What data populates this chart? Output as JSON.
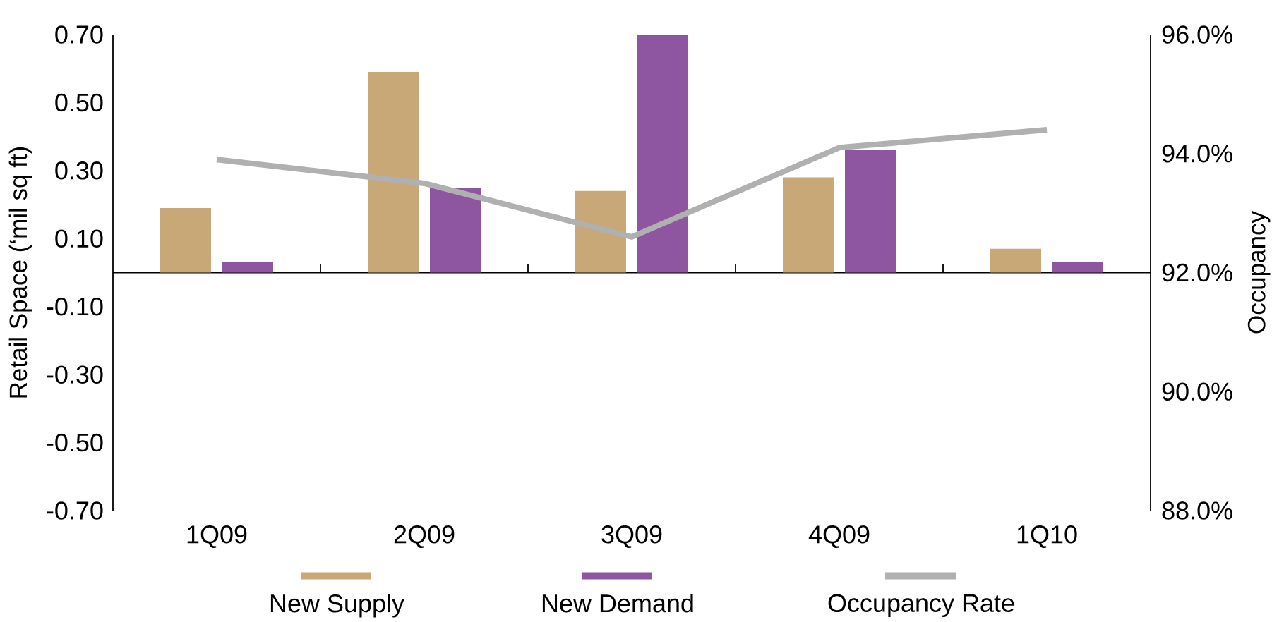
{
  "chart_data": {
    "type": "bar",
    "categories": [
      "1Q09",
      "2Q09",
      "3Q09",
      "4Q09",
      "1Q10"
    ],
    "series": [
      {
        "name": "New Supply",
        "color": "#c8a876",
        "values": [
          0.19,
          0.59,
          0.24,
          0.28,
          0.07
        ]
      },
      {
        "name": "New Demand",
        "color": "#8e55a0",
        "values": [
          0.03,
          0.25,
          0.7,
          0.36,
          0.03
        ]
      },
      {
        "name": "Occupancy Rate",
        "type": "line",
        "axis": "y2",
        "color": "#b0b0b0",
        "values": [
          93.9,
          93.5,
          92.6,
          94.1,
          94.4
        ]
      }
    ],
    "ylabel": "Retail Space (‘mil sq ft)",
    "y2label": "Occupancy",
    "ylim": [
      -0.7,
      0.7
    ],
    "yticks": [
      {
        "value": 0.7,
        "label": "0.70"
      },
      {
        "value": 0.5,
        "label": "0.50"
      },
      {
        "value": 0.3,
        "label": "0.30"
      },
      {
        "value": 0.1,
        "label": "0.10"
      },
      {
        "value": -0.1,
        "label": "-0.10"
      },
      {
        "value": -0.3,
        "label": "-0.30"
      },
      {
        "value": -0.5,
        "label": "-0.50"
      },
      {
        "value": -0.7,
        "label": "-0.70"
      }
    ],
    "y2lim": [
      88,
      96
    ],
    "y2ticks": [
      {
        "value": 96,
        "label": "96.0%"
      },
      {
        "value": 94,
        "label": "94.0%"
      },
      {
        "value": 92,
        "label": "92.0%"
      },
      {
        "value": 90,
        "label": "90.0%"
      },
      {
        "value": 88,
        "label": "88.0%"
      }
    ],
    "legend": "bottom"
  }
}
